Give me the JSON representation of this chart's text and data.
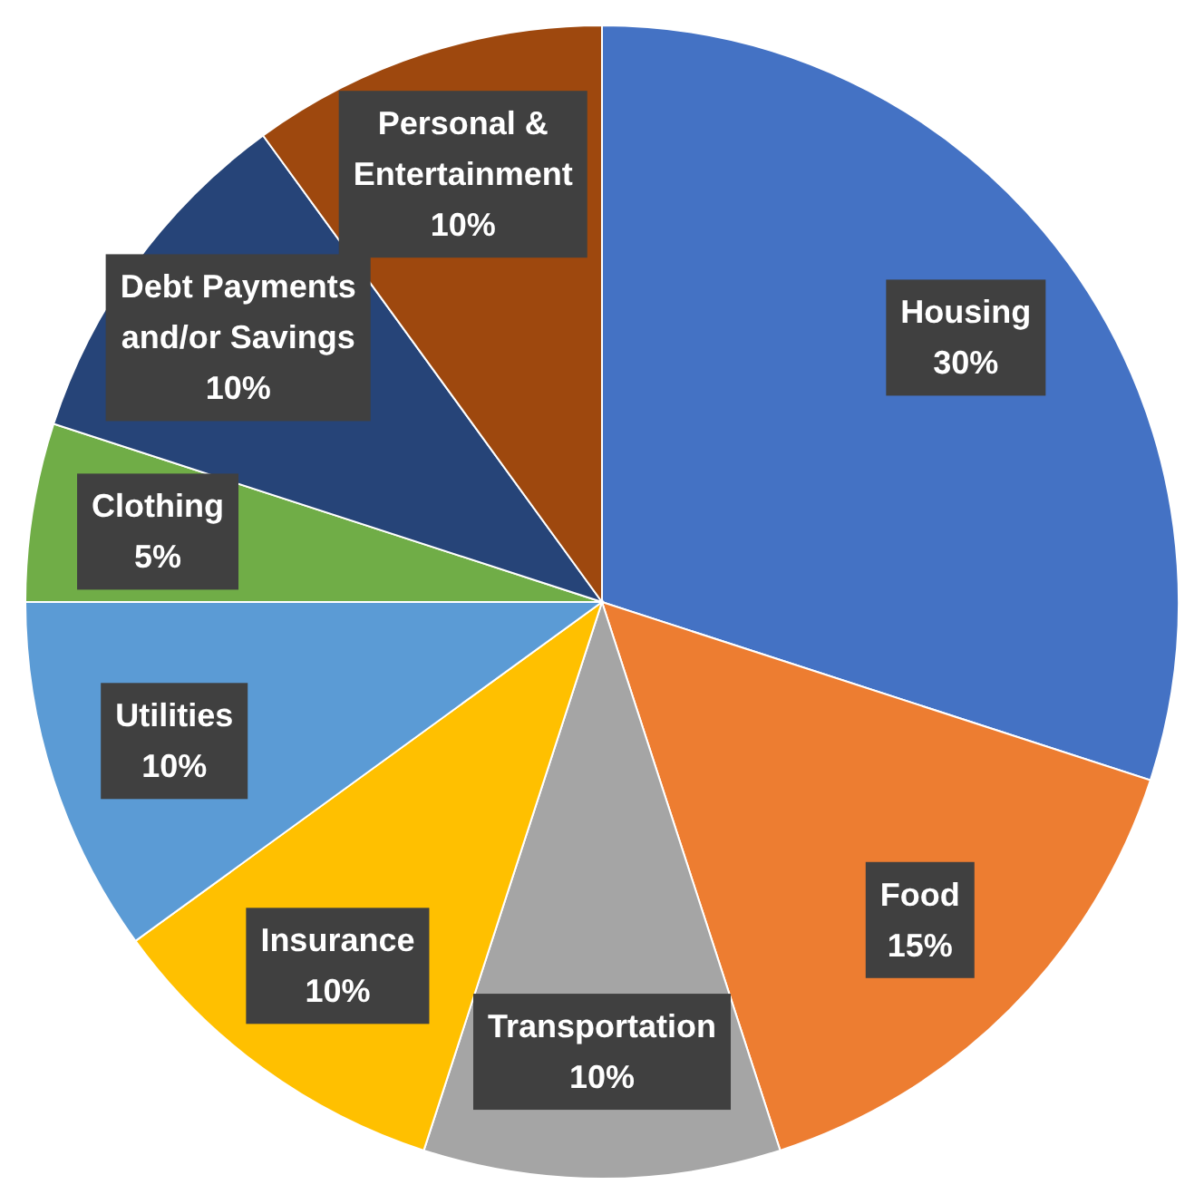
{
  "chart_data": {
    "type": "pie",
    "categories": [
      "Housing",
      "Food",
      "Transportation",
      "Insurance",
      "Utilities",
      "Clothing",
      "Debt Payments and/or Savings",
      "Personal & Entertainment"
    ],
    "values": [
      30,
      15,
      10,
      10,
      10,
      5,
      10,
      10
    ],
    "colors": [
      "#4472c4",
      "#ed7d31",
      "#a5a5a5",
      "#ffc000",
      "#5b9bd5",
      "#70ad47",
      "#264478",
      "#9e480e"
    ],
    "value_labels": [
      "30%",
      "15%",
      "10%",
      "10%",
      "10%",
      "5%",
      "10%",
      "10%"
    ]
  }
}
